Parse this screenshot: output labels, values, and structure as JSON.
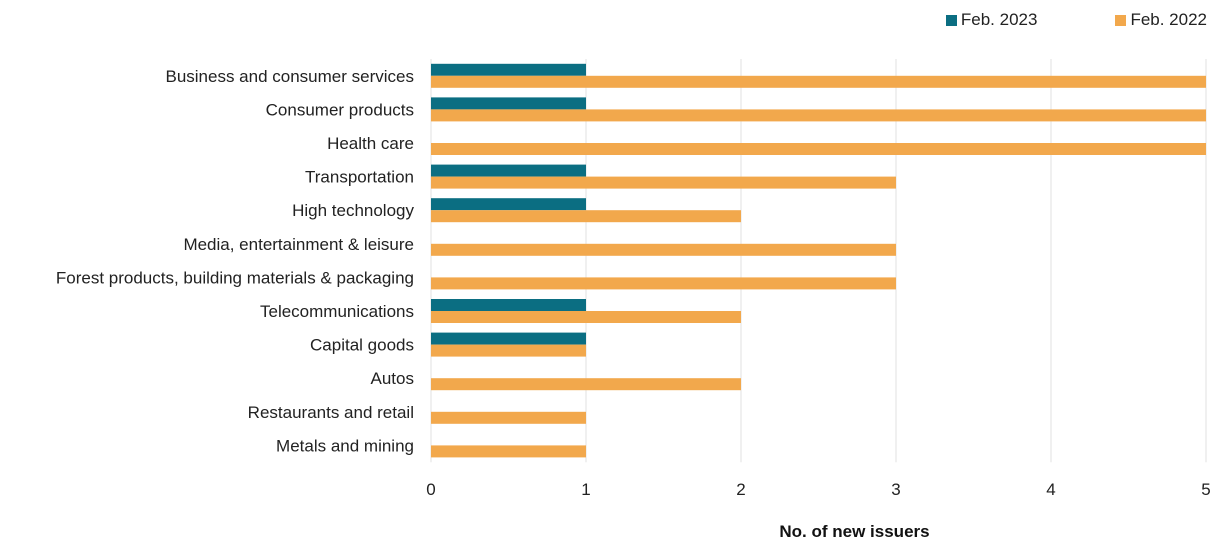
{
  "chart_data": {
    "type": "bar",
    "orientation": "horizontal",
    "title": "",
    "xlabel": "No. of new issuers",
    "ylabel": "",
    "xlim": [
      0,
      5
    ],
    "xticks": [
      "0",
      "1",
      "2",
      "3",
      "4",
      "5"
    ],
    "grid": "vertical",
    "legend_position": "top-right",
    "categories": [
      "Business and consumer services",
      "Consumer products",
      "Health care",
      "Transportation",
      "High technology",
      "Media, entertainment & leisure",
      "Forest products, building materials & packaging",
      "Telecommunications",
      "Capital goods",
      "Autos",
      "Restaurants and retail",
      "Metals and mining"
    ],
    "series": [
      {
        "name": "Feb. 2023",
        "color": "#0b6e82",
        "values": [
          1,
          1,
          0,
          1,
          1,
          0,
          0,
          1,
          1,
          0,
          0,
          0
        ]
      },
      {
        "name": "Feb. 2022",
        "color": "#f2a84c",
        "values": [
          5,
          5,
          5,
          3,
          2,
          3,
          3,
          2,
          1,
          2,
          1,
          1
        ]
      }
    ]
  }
}
